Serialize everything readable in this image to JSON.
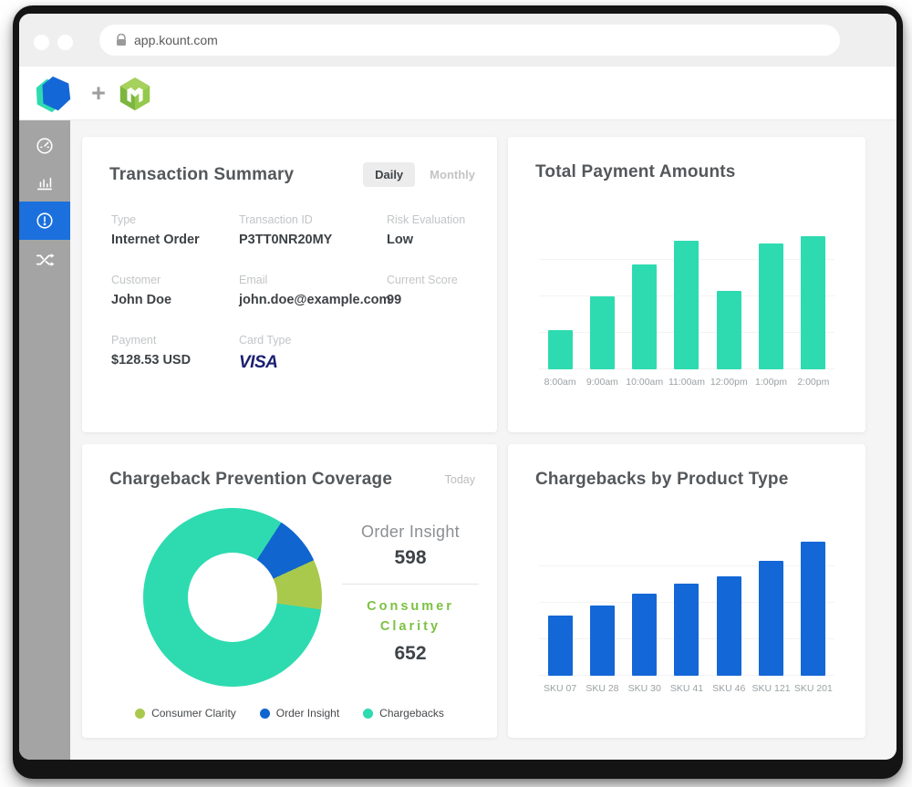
{
  "browser": {
    "url": "app.kount.com"
  },
  "header": {
    "plus": "+"
  },
  "sidebar": {
    "items": [
      {
        "name": "dashboard",
        "icon": "gauge-icon",
        "active": false
      },
      {
        "name": "reports",
        "icon": "bar-chart-icon",
        "active": false
      },
      {
        "name": "alerts",
        "icon": "alert-circle-icon",
        "active": true
      },
      {
        "name": "routing",
        "icon": "shuffle-icon",
        "active": false
      }
    ],
    "active_color": "#1b70dd"
  },
  "transaction_summary": {
    "title": "Transaction Summary",
    "toggle": {
      "daily": "Daily",
      "monthly": "Monthly",
      "selected": "Daily"
    },
    "fields": [
      {
        "label": "Type",
        "value": "Internet Order"
      },
      {
        "label": "Transaction ID",
        "value": "P3TT0NR20MY"
      },
      {
        "label": "Risk Evaluation",
        "value": "Low"
      },
      {
        "label": "Customer",
        "value": "John Doe"
      },
      {
        "label": "Email",
        "value": "john.doe@example.com"
      },
      {
        "label": "Current Score",
        "value": "99"
      },
      {
        "label": "Payment",
        "value": "$128.53 USD"
      },
      {
        "label": "Card Type",
        "value": "VISA"
      }
    ]
  },
  "chart_data": [
    {
      "type": "bar",
      "title": "Total Payment Amounts",
      "categories": [
        "8:00am",
        "9:00am",
        "10:00am",
        "11:00am",
        "12:00pm",
        "1:00pm",
        "2:00pm"
      ],
      "values": [
        27,
        50,
        72,
        88,
        54,
        86,
        91
      ],
      "ylim": [
        0,
        100
      ],
      "xlabel": "",
      "ylabel": "",
      "grid": true,
      "color": "#2edbb0"
    },
    {
      "type": "pie",
      "title": "Chargeback Prevention Coverage",
      "period": "Today",
      "slices": [
        {
          "label": "Consumer Clarity",
          "pct": 9,
          "color": "#a9c94d"
        },
        {
          "label": "Order Insight",
          "pct": 9,
          "color": "#1165cf"
        },
        {
          "label": "Chargebacks",
          "pct": 82,
          "color": "#2edbb0"
        }
      ],
      "draw_order": [
        1,
        0,
        2
      ],
      "rotate": 33,
      "donut": true,
      "legend_position": "bottom",
      "stats": {
        "order_insight_label": "Order Insight",
        "order_insight_value": "598",
        "consumer_clarity_label_line1": "Consumer",
        "consumer_clarity_label_line2": "Clarity",
        "consumer_clarity_value": "652"
      }
    },
    {
      "type": "bar",
      "title": "Chargebacks by Product Type",
      "categories": [
        "SKU 07",
        "SKU 28",
        "SKU 30",
        "SKU 41",
        "SKU 46",
        "SKU 121",
        "SKU 201"
      ],
      "values": [
        41,
        48,
        56,
        63,
        68,
        79,
        92
      ],
      "ylim": [
        0,
        100
      ],
      "xlabel": "",
      "ylabel": "",
      "grid": true,
      "color": "#1467d6"
    }
  ],
  "colors": {
    "teal": "#2edbb0",
    "blue": "#1467d6",
    "green": "#a9c94d",
    "green_text": "#7cc142",
    "visa_blue": "#1a1f71"
  }
}
